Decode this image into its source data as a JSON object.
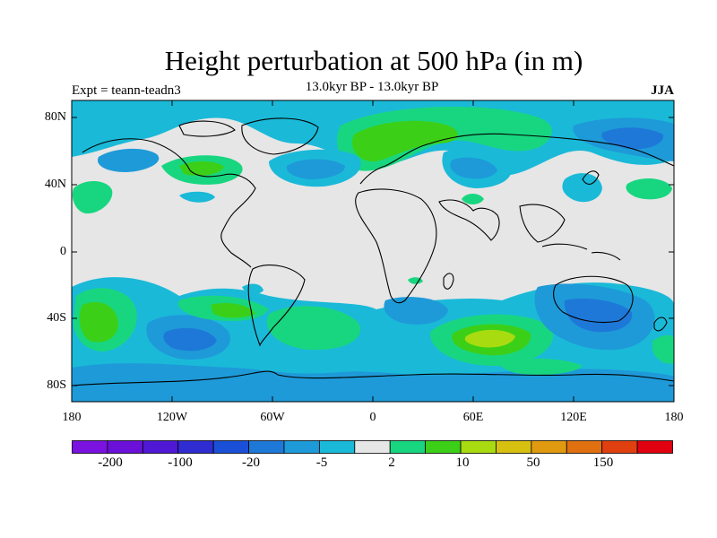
{
  "title": "Height perturbation at 500 hPa (in m)",
  "subtitle": "13.0kyr BP - 13.0kyr BP",
  "expt_label": "Expt = teann-teadn3",
  "season": "JJA",
  "lat_labels": [
    "80N",
    "40N",
    "0",
    "40S",
    "80S"
  ],
  "lon_labels": [
    "180",
    "120W",
    "60W",
    "0",
    "60E",
    "120E",
    "180"
  ],
  "colorbar": {
    "colors": [
      "#7a12e0",
      "#6a10d8",
      "#4e18d4",
      "#2f2cd2",
      "#1a4fd8",
      "#1e78d8",
      "#1e9ad8",
      "#1ab9d8",
      "#e6e6e6",
      "#18d680",
      "#3ccf18",
      "#a8dc10",
      "#d8c010",
      "#e09a10",
      "#e07010",
      "#e04010",
      "#e00010"
    ],
    "tick_labels": [
      "-200",
      "-100",
      "-20",
      "-5",
      "2",
      "10",
      "50",
      "150"
    ]
  },
  "map_colors": {
    "background": "#e6e6e6",
    "light_blue": "#1ab9d8",
    "mid_blue": "#1e9ad8",
    "dark_blue": "#1e78d8",
    "green_light": "#18d680",
    "green": "#3ccf18",
    "yellow_green": "#a8dc10",
    "coastline": "#000000"
  }
}
